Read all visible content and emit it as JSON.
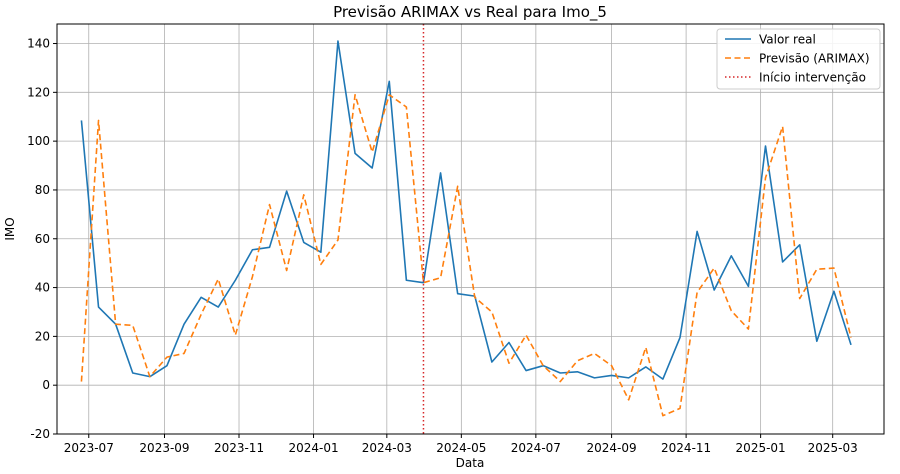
{
  "chart_data": {
    "type": "line",
    "title": "Previsão ARIMAX vs Real para Imo_5",
    "xlabel": "Data",
    "ylabel": "IMO",
    "ylim": [
      -20,
      148
    ],
    "xlim": [
      "2023-06-05",
      "2025-04-12"
    ],
    "grid": true,
    "legend_position": "top-right",
    "yticks": [
      -20,
      0,
      20,
      40,
      60,
      80,
      100,
      120,
      140
    ],
    "xticks": [
      {
        "date": "2023-07-01",
        "label": "2023-07"
      },
      {
        "date": "2023-09-01",
        "label": "2023-09"
      },
      {
        "date": "2023-11-01",
        "label": "2023-11"
      },
      {
        "date": "2024-01-01",
        "label": "2024-01"
      },
      {
        "date": "2024-03-01",
        "label": "2024-03"
      },
      {
        "date": "2024-05-01",
        "label": "2024-05"
      },
      {
        "date": "2024-07-01",
        "label": "2024-07"
      },
      {
        "date": "2024-09-01",
        "label": "2024-09"
      },
      {
        "date": "2024-11-01",
        "label": "2024-11"
      },
      {
        "date": "2025-01-01",
        "label": "2025-01"
      },
      {
        "date": "2025-03-01",
        "label": "2025-03"
      }
    ],
    "x": [
      "2023-06-25",
      "2023-07-09",
      "2023-07-23",
      "2023-08-06",
      "2023-08-20",
      "2023-09-03",
      "2023-09-17",
      "2023-10-01",
      "2023-10-15",
      "2023-10-29",
      "2023-11-12",
      "2023-11-26",
      "2023-12-10",
      "2023-12-24",
      "2024-01-07",
      "2024-01-21",
      "2024-02-04",
      "2024-02-18",
      "2024-03-03",
      "2024-03-17",
      "2024-03-31",
      "2024-04-14",
      "2024-04-28",
      "2024-05-12",
      "2024-05-26",
      "2024-06-09",
      "2024-06-23",
      "2024-07-07",
      "2024-07-21",
      "2024-08-04",
      "2024-08-18",
      "2024-09-01",
      "2024-09-15",
      "2024-09-29",
      "2024-10-13",
      "2024-10-27",
      "2024-11-10",
      "2024-11-24",
      "2024-12-08",
      "2024-12-22",
      "2025-01-05",
      "2025-01-19",
      "2025-02-02",
      "2025-02-16",
      "2025-03-02",
      "2025-03-16"
    ],
    "series": [
      {
        "name": "Valor real",
        "color": "#1f77b4",
        "style": "solid",
        "values": [
          108.5,
          32,
          25,
          5,
          3.5,
          8,
          25,
          36,
          32,
          43,
          55.5,
          56.5,
          79.5,
          58.5,
          54.5,
          141,
          95,
          89,
          124.5,
          43,
          42,
          87,
          37.5,
          36.5,
          9.5,
          17.5,
          6,
          8,
          5,
          5.5,
          3,
          4,
          3,
          7.5,
          2.5,
          19.5,
          63,
          39,
          53,
          40.5,
          98,
          50.5,
          57.5,
          18,
          38.5,
          16.5
        ]
      },
      {
        "name": "Previsão (ARIMAX)",
        "color": "#ff7f0e",
        "style": "dashed",
        "values": [
          1.5,
          108.5,
          25,
          24.5,
          3.5,
          11.5,
          13,
          29,
          43.5,
          20.5,
          44.5,
          74,
          47,
          78,
          49.5,
          59.5,
          119,
          95.5,
          119,
          114,
          42,
          44,
          81.5,
          36,
          30,
          9,
          20.5,
          8,
          1.5,
          10,
          13,
          8,
          -6,
          15.5,
          -12.5,
          -9.5,
          38,
          48,
          30.5,
          23,
          85,
          106,
          35.5,
          47.5,
          48,
          19.5
        ]
      },
      {
        "name": "Início intervenção",
        "color": "#d62728",
        "style": "dotted",
        "x": "2024-03-31"
      }
    ]
  }
}
